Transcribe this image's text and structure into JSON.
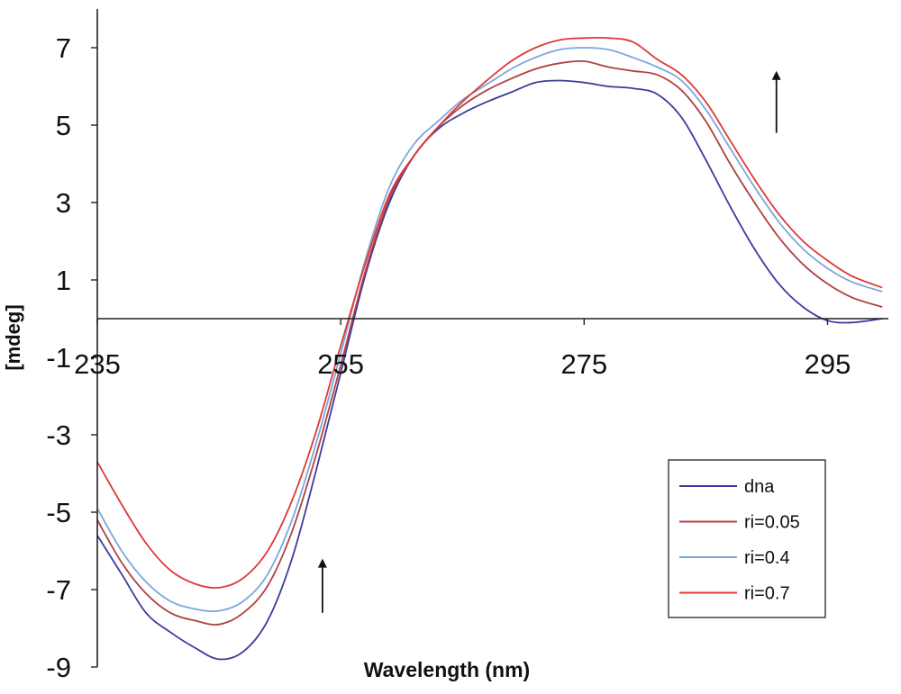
{
  "chart_data": {
    "type": "line",
    "title": "",
    "xlabel": "Wavelength (nm)",
    "ylabel": "[mdeg]",
    "xlim": [
      235,
      300
    ],
    "ylim": [
      -9,
      8
    ],
    "x_ticks": [
      235,
      255,
      275,
      295
    ],
    "x_tick_labels": [
      "235",
      "255",
      "275",
      "295"
    ],
    "y_ticks": [
      -9,
      -7,
      -5,
      -3,
      -1,
      1,
      3,
      5,
      7
    ],
    "y_tick_labels": [
      "-9",
      "-7",
      "-5",
      "-3",
      "-1",
      "1",
      "3",
      "5",
      "7"
    ],
    "x_axis_crosses_y_at": 0,
    "grid": false,
    "legend_position": "bottom-right",
    "x": [
      235,
      237,
      239,
      241,
      243,
      245,
      247,
      249,
      251,
      253,
      255,
      257,
      259,
      261,
      263,
      265,
      267,
      269,
      271,
      273,
      275,
      277,
      279,
      281,
      283,
      285,
      287,
      289,
      291,
      293,
      295,
      297,
      299.5
    ],
    "series": [
      {
        "name": "dna",
        "color": "#3b3b9e",
        "values": [
          -5.6,
          -6.6,
          -7.6,
          -8.1,
          -8.5,
          -8.8,
          -8.6,
          -7.8,
          -6.2,
          -3.9,
          -1.4,
          1.1,
          3.0,
          4.2,
          4.9,
          5.3,
          5.6,
          5.85,
          6.1,
          6.15,
          6.1,
          6.0,
          5.95,
          5.8,
          5.2,
          4.1,
          2.9,
          1.8,
          0.9,
          0.3,
          -0.05,
          -0.1,
          0.0
        ]
      },
      {
        "name": "ri=0.05",
        "color": "#b04040",
        "values": [
          -5.2,
          -6.3,
          -7.1,
          -7.6,
          -7.8,
          -7.9,
          -7.6,
          -6.9,
          -5.5,
          -3.5,
          -1.2,
          1.2,
          3.1,
          4.2,
          4.95,
          5.5,
          5.9,
          6.2,
          6.45,
          6.6,
          6.65,
          6.5,
          6.4,
          6.3,
          5.9,
          5.1,
          4.0,
          3.0,
          2.1,
          1.4,
          0.9,
          0.55,
          0.3
        ]
      },
      {
        "name": "ri=0.4",
        "color": "#7aa8dc",
        "values": [
          -4.9,
          -6.0,
          -6.8,
          -7.3,
          -7.5,
          -7.55,
          -7.3,
          -6.6,
          -5.2,
          -3.2,
          -0.9,
          1.5,
          3.4,
          4.5,
          5.1,
          5.65,
          6.05,
          6.45,
          6.75,
          6.95,
          7.0,
          6.95,
          6.75,
          6.5,
          6.15,
          5.4,
          4.4,
          3.4,
          2.5,
          1.8,
          1.3,
          0.95,
          0.7
        ]
      },
      {
        "name": "ri=0.7",
        "color": "#e03838",
        "values": [
          -3.7,
          -4.8,
          -5.8,
          -6.5,
          -6.85,
          -6.95,
          -6.7,
          -6.0,
          -4.7,
          -2.9,
          -0.7,
          1.4,
          3.2,
          4.2,
          4.95,
          5.6,
          6.15,
          6.65,
          7.0,
          7.2,
          7.25,
          7.25,
          7.15,
          6.7,
          6.3,
          5.6,
          4.6,
          3.6,
          2.7,
          2.0,
          1.5,
          1.1,
          0.8
        ]
      }
    ],
    "annotations": [
      {
        "type": "arrow",
        "direction": "up",
        "x": 290.8,
        "y_from": 4.8,
        "y_to": 6.4
      },
      {
        "type": "arrow",
        "direction": "up",
        "x": 253.5,
        "y_from": -7.6,
        "y_to": -6.2
      }
    ]
  }
}
